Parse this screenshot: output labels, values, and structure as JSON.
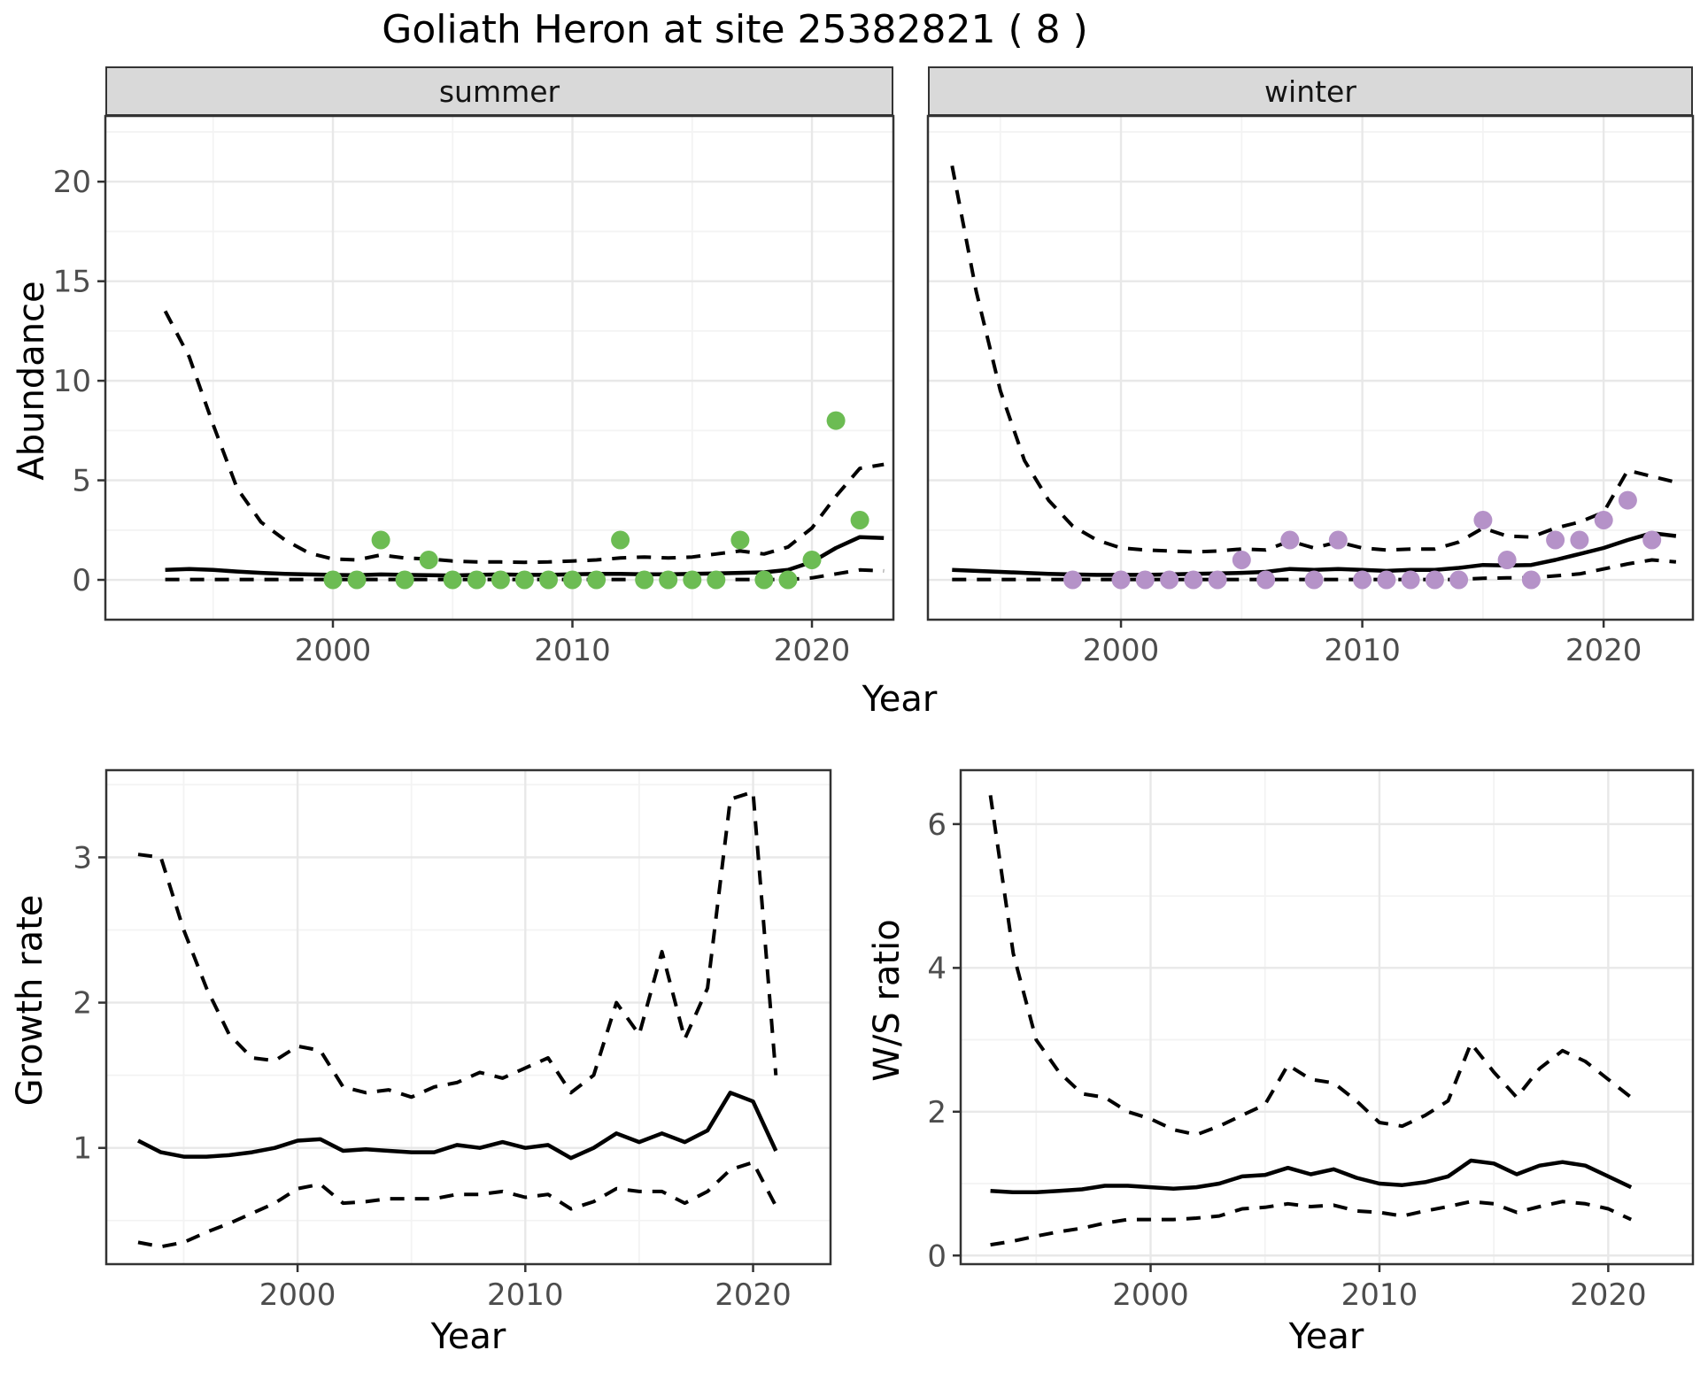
{
  "title": "Goliath Heron at site 25382821 ( 8 )",
  "colors": {
    "summer_point": "#6cbc53",
    "winter_point": "#b592c8",
    "line": "#000000",
    "axis_text": "#4d4d4d",
    "strip_bg": "#d9d9d9",
    "grid_major": "#e8e8e8",
    "grid_minor": "#f3f3f3",
    "panel_border": "#333333"
  },
  "top_row": {
    "ylabel": "Abundance",
    "xlabel": "Year"
  },
  "chart_data": [
    {
      "id": "abundance-summer",
      "type": "line",
      "facet_label": "summer",
      "ylabel": "Abundance",
      "xlabel": "Year",
      "x_domain": [
        1990.5,
        2023.4
      ],
      "y_domain": [
        -2.0,
        23.3
      ],
      "x_ticks": [
        2000,
        2010,
        2020
      ],
      "x_minor": [
        1995,
        2005,
        2015
      ],
      "y_ticks": [
        0,
        5,
        10,
        15,
        20
      ],
      "y_minor": [
        2.5,
        7.5,
        12.5,
        17.5,
        22.5
      ],
      "points": {
        "color": "#6cbc53",
        "years": [
          2000,
          2001,
          2002,
          2003,
          2004,
          2005,
          2006,
          2007,
          2008,
          2009,
          2010,
          2011,
          2012,
          2013,
          2014,
          2015,
          2016,
          2017,
          2018,
          2019,
          2020,
          2021,
          2022
        ],
        "values": [
          0,
          0,
          2,
          0,
          1,
          0,
          0,
          0,
          0,
          0,
          0,
          0,
          2,
          0,
          0,
          0,
          0,
          2,
          0,
          0,
          1,
          8,
          3
        ]
      },
      "line_years": [
        1993,
        1994,
        1995,
        1996,
        1997,
        1998,
        1999,
        2000,
        2001,
        2002,
        2003,
        2004,
        2005,
        2006,
        2007,
        2008,
        2009,
        2010,
        2011,
        2012,
        2013,
        2014,
        2015,
        2016,
        2017,
        2018,
        2019,
        2020,
        2021,
        2022,
        2023
      ],
      "fit": [
        0.5,
        0.55,
        0.5,
        0.42,
        0.35,
        0.3,
        0.27,
        0.25,
        0.23,
        0.27,
        0.25,
        0.23,
        0.22,
        0.25,
        0.27,
        0.25,
        0.25,
        0.28,
        0.3,
        0.3,
        0.28,
        0.28,
        0.3,
        0.32,
        0.35,
        0.38,
        0.5,
        0.9,
        1.6,
        2.15,
        2.1
      ],
      "upper": [
        13.5,
        11.2,
        7.8,
        4.6,
        2.9,
        2.0,
        1.35,
        1.05,
        1.0,
        1.25,
        1.1,
        1.05,
        0.95,
        0.9,
        0.9,
        0.88,
        0.9,
        0.95,
        1.0,
        1.1,
        1.15,
        1.1,
        1.15,
        1.3,
        1.45,
        1.3,
        1.65,
        2.6,
        4.2,
        5.6,
        5.8
      ],
      "lower": [
        0.02,
        0.02,
        0.02,
        0.02,
        0.02,
        0.02,
        0.02,
        0.02,
        0.02,
        0.02,
        0.02,
        0.02,
        0.02,
        0.02,
        0.02,
        0.02,
        0.02,
        0.02,
        0.02,
        0.02,
        0.02,
        0.02,
        0.02,
        0.02,
        0.02,
        0.02,
        0.02,
        0.1,
        0.3,
        0.5,
        0.45
      ]
    },
    {
      "id": "abundance-winter",
      "type": "line",
      "facet_label": "winter",
      "ylabel": "Abundance",
      "xlabel": "Year",
      "x_domain": [
        1992.0,
        2023.7
      ],
      "y_domain": [
        -2.0,
        23.3
      ],
      "x_ticks": [
        2000,
        2010,
        2020
      ],
      "x_minor": [
        1995,
        2005,
        2015
      ],
      "y_ticks": [
        0,
        5,
        10,
        15,
        20
      ],
      "y_minor": [
        2.5,
        7.5,
        12.5,
        17.5,
        22.5
      ],
      "points": {
        "color": "#b592c8",
        "years": [
          1998,
          2000,
          2001,
          2002,
          2003,
          2004,
          2005,
          2006,
          2007,
          2008,
          2009,
          2010,
          2011,
          2012,
          2013,
          2014,
          2015,
          2016,
          2017,
          2018,
          2019,
          2020,
          2021,
          2022
        ],
        "values": [
          0,
          0,
          0,
          0,
          0,
          0,
          1,
          0,
          2,
          0,
          2,
          0,
          0,
          0,
          0,
          0,
          3,
          1,
          0,
          2,
          2,
          3,
          4,
          2
        ]
      },
      "line_years": [
        1993,
        1994,
        1995,
        1996,
        1997,
        1998,
        1999,
        2000,
        2001,
        2002,
        2003,
        2004,
        2005,
        2006,
        2007,
        2008,
        2009,
        2010,
        2011,
        2012,
        2013,
        2014,
        2015,
        2016,
        2017,
        2018,
        2019,
        2020,
        2021,
        2022,
        2023
      ],
      "fit": [
        0.5,
        0.45,
        0.4,
        0.35,
        0.3,
        0.27,
        0.25,
        0.25,
        0.25,
        0.27,
        0.3,
        0.32,
        0.35,
        0.4,
        0.55,
        0.5,
        0.55,
        0.5,
        0.45,
        0.5,
        0.5,
        0.6,
        0.75,
        0.72,
        0.75,
        1.0,
        1.3,
        1.6,
        2.0,
        2.35,
        2.2
      ],
      "upper": [
        20.8,
        14.5,
        9.5,
        6.0,
        4.0,
        2.7,
        2.0,
        1.6,
        1.5,
        1.45,
        1.4,
        1.45,
        1.55,
        1.5,
        1.95,
        1.6,
        1.9,
        1.6,
        1.5,
        1.55,
        1.55,
        1.9,
        2.6,
        2.2,
        2.15,
        2.6,
        2.9,
        3.4,
        5.5,
        5.2,
        4.9
      ],
      "lower": [
        0.02,
        0.02,
        0.02,
        0.02,
        0.02,
        0.02,
        0.02,
        0.02,
        0.02,
        0.02,
        0.02,
        0.02,
        0.02,
        0.02,
        0.02,
        0.02,
        0.02,
        0.02,
        0.02,
        0.02,
        0.02,
        0.02,
        0.08,
        0.1,
        0.1,
        0.2,
        0.3,
        0.55,
        0.8,
        1.0,
        0.9
      ]
    },
    {
      "id": "growth-rate",
      "type": "line",
      "facet_label": "",
      "ylabel": "Growth rate",
      "xlabel": "Year",
      "x_domain": [
        1991.6,
        2023.4
      ],
      "y_domain": [
        0.2,
        3.6
      ],
      "x_ticks": [
        2000,
        2010,
        2020
      ],
      "x_minor": [
        1995,
        2005,
        2015
      ],
      "y_ticks": [
        1,
        2,
        3
      ],
      "y_minor": [
        0.5,
        1.5,
        2.5,
        3.5
      ],
      "points": null,
      "line_years": [
        1993,
        1994,
        1995,
        1996,
        1997,
        1998,
        1999,
        2000,
        2001,
        2002,
        2003,
        2004,
        2005,
        2006,
        2007,
        2008,
        2009,
        2010,
        2011,
        2012,
        2013,
        2014,
        2015,
        2016,
        2017,
        2018,
        2019,
        2020,
        2021
      ],
      "fit": [
        1.05,
        0.97,
        0.94,
        0.94,
        0.95,
        0.97,
        1.0,
        1.05,
        1.06,
        0.98,
        0.99,
        0.98,
        0.97,
        0.97,
        1.02,
        1.0,
        1.04,
        1.0,
        1.02,
        0.93,
        1.0,
        1.1,
        1.04,
        1.1,
        1.04,
        1.12,
        1.38,
        1.32,
        0.98
      ],
      "upper": [
        3.02,
        3.0,
        2.5,
        2.1,
        1.78,
        1.62,
        1.6,
        1.7,
        1.67,
        1.42,
        1.38,
        1.4,
        1.35,
        1.42,
        1.45,
        1.52,
        1.48,
        1.55,
        1.62,
        1.38,
        1.5,
        2.0,
        1.78,
        2.35,
        1.75,
        2.1,
        3.4,
        3.45,
        1.5
      ],
      "lower": [
        0.35,
        0.32,
        0.35,
        0.42,
        0.48,
        0.55,
        0.62,
        0.72,
        0.75,
        0.62,
        0.63,
        0.65,
        0.65,
        0.65,
        0.68,
        0.68,
        0.7,
        0.66,
        0.68,
        0.58,
        0.63,
        0.72,
        0.7,
        0.7,
        0.62,
        0.7,
        0.85,
        0.9,
        0.6
      ]
    },
    {
      "id": "ws-ratio",
      "type": "line",
      "facet_label": "",
      "ylabel": "W/S ratio",
      "xlabel": "Year",
      "x_domain": [
        1991.7,
        2023.7
      ],
      "y_domain": [
        -0.12,
        6.75
      ],
      "x_ticks": [
        2000,
        2010,
        2020
      ],
      "x_minor": [
        1995,
        2005,
        2015
      ],
      "y_ticks": [
        0,
        2,
        4,
        6
      ],
      "y_minor": [
        1,
        3,
        5
      ],
      "points": null,
      "line_years": [
        1993,
        1994,
        1995,
        1996,
        1997,
        1998,
        1999,
        2000,
        2001,
        2002,
        2003,
        2004,
        2005,
        2006,
        2007,
        2008,
        2009,
        2010,
        2011,
        2012,
        2013,
        2014,
        2015,
        2016,
        2017,
        2018,
        2019,
        2020,
        2021
      ],
      "fit": [
        0.9,
        0.88,
        0.88,
        0.9,
        0.92,
        0.97,
        0.97,
        0.95,
        0.93,
        0.95,
        1.0,
        1.1,
        1.12,
        1.22,
        1.13,
        1.2,
        1.08,
        1.0,
        0.98,
        1.02,
        1.1,
        1.32,
        1.28,
        1.13,
        1.25,
        1.3,
        1.25,
        1.1,
        0.95
      ],
      "upper": [
        6.4,
        4.2,
        3.0,
        2.55,
        2.25,
        2.2,
        2.0,
        1.9,
        1.75,
        1.68,
        1.8,
        1.95,
        2.1,
        2.65,
        2.45,
        2.4,
        2.15,
        1.85,
        1.8,
        1.95,
        2.15,
        2.95,
        2.55,
        2.2,
        2.6,
        2.85,
        2.7,
        2.45,
        2.2
      ],
      "lower": [
        0.15,
        0.2,
        0.27,
        0.33,
        0.38,
        0.45,
        0.5,
        0.5,
        0.5,
        0.52,
        0.55,
        0.65,
        0.67,
        0.72,
        0.68,
        0.7,
        0.62,
        0.6,
        0.55,
        0.62,
        0.68,
        0.75,
        0.72,
        0.6,
        0.68,
        0.75,
        0.72,
        0.65,
        0.5
      ]
    }
  ]
}
